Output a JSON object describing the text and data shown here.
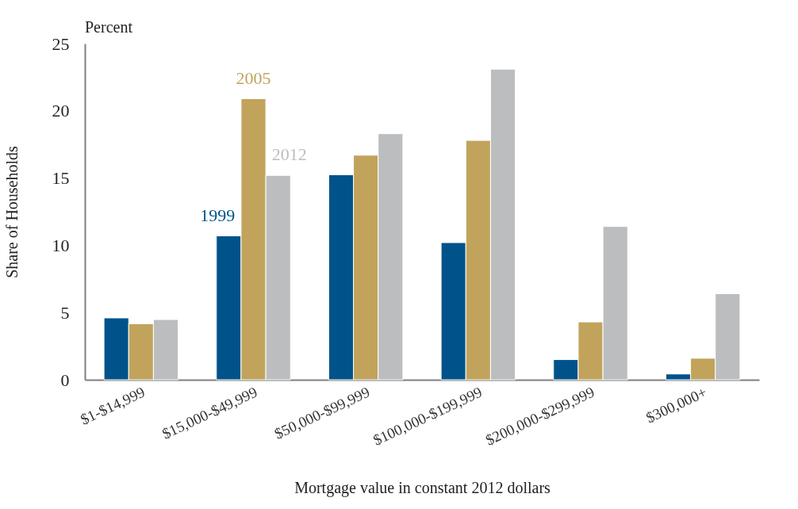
{
  "chart_data": {
    "type": "bar",
    "xlabel": "Mortgage value in constant 2012 dollars",
    "ylabel": "Share of Households",
    "annotations": [
      "Percent"
    ],
    "categories": [
      "$1-$14,999",
      "$15,000-$49,999",
      "$50,000-$99,999",
      "$100,000-$199,999",
      "$200,000-$299,999",
      "$300,000+"
    ],
    "series": [
      {
        "name": "1999",
        "color": "#00538a",
        "values": [
          4.6,
          10.7,
          15.25,
          10.2,
          1.5,
          0.43
        ]
      },
      {
        "name": "2005",
        "color": "#c1a35b",
        "values": [
          4.17,
          20.9,
          16.7,
          17.8,
          4.3,
          1.6
        ]
      },
      {
        "name": "2012",
        "color": "#bcbdbf",
        "values": [
          4.48,
          15.2,
          18.3,
          23.1,
          11.4,
          6.4
        ]
      }
    ],
    "ylim": [
      0,
      25
    ],
    "yticks": [
      0,
      5,
      10,
      15,
      20,
      25
    ],
    "grid": false,
    "legend": false
  }
}
